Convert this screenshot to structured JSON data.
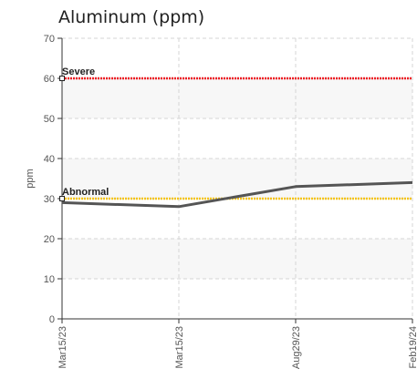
{
  "chart_data": {
    "type": "line",
    "title": "Aluminum (ppm)",
    "ylabel": "ppm",
    "xlabel": "",
    "ylim": [
      0,
      70
    ],
    "yticks": [
      0,
      10,
      20,
      30,
      40,
      50,
      60,
      70
    ],
    "categories": [
      "Mar15/23",
      "Mar15/23",
      "Aug29/23",
      "Feb19/24"
    ],
    "series": [
      {
        "values": [
          29,
          28,
          33,
          34
        ],
        "color": "#555555"
      }
    ],
    "thresholds": [
      {
        "label": "Severe",
        "value": 60,
        "color": "#ee1c24"
      },
      {
        "label": "Abnormal",
        "value": 30,
        "color": "#f5c518"
      }
    ],
    "grid": true,
    "band_color": "#f7f7f7"
  }
}
